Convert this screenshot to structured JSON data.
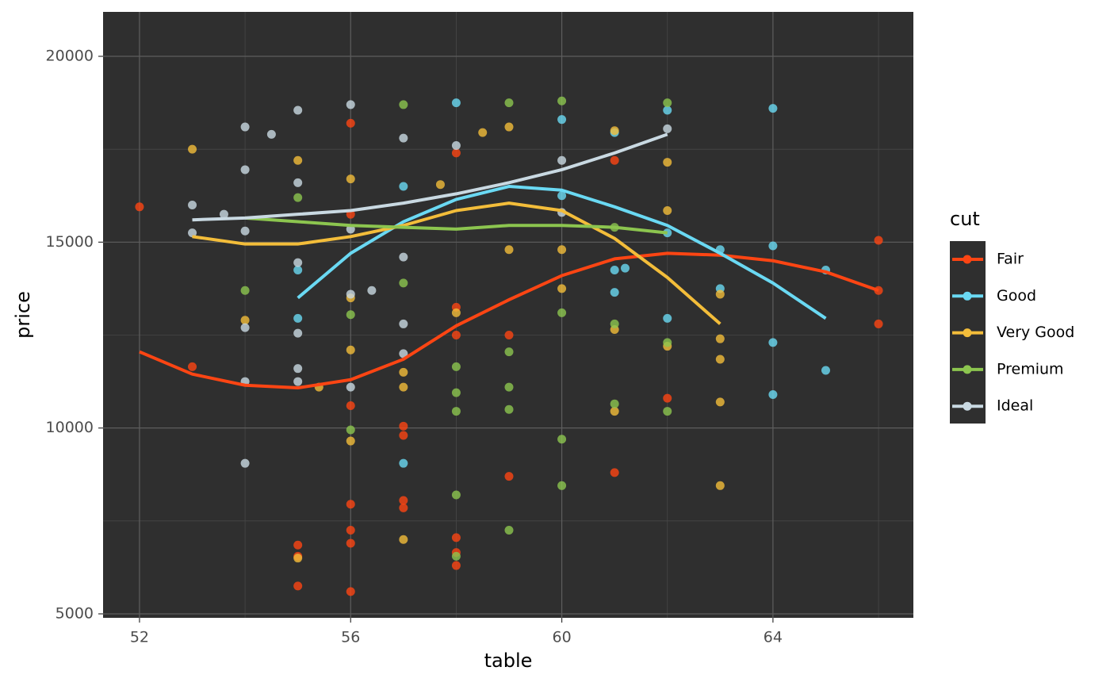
{
  "chart_data": {
    "type": "scatter",
    "x_label": "table",
    "y_label": "price",
    "legend_title": "cut",
    "xlim": [
      51.31,
      66.66
    ],
    "ylim": [
      4893,
      21195
    ],
    "xticks": [
      52,
      56,
      60,
      64
    ],
    "yticks": [
      5000,
      10000,
      15000,
      20000
    ],
    "x_minor_grid": [
      54,
      58,
      62,
      66
    ],
    "y_minor_grid": [
      7500,
      12500,
      17500
    ],
    "grid": true,
    "legend": "right",
    "series": [
      {
        "name": "Fair",
        "color": "#fc4513",
        "x": [
          52,
          53,
          55,
          55,
          55,
          56,
          56,
          56,
          56,
          56,
          56,
          56,
          57,
          57,
          57,
          57,
          58,
          58,
          58,
          58,
          58,
          58,
          59,
          59,
          61,
          61,
          62,
          66,
          66,
          66
        ],
        "values": [
          15950,
          11650,
          6850,
          6550,
          5750,
          18200,
          15750,
          10600,
          7950,
          7250,
          6900,
          5600,
          10050,
          9800,
          8050,
          7850,
          17400,
          13250,
          12500,
          7050,
          6650,
          6300,
          12500,
          8700,
          17200,
          8800,
          10800,
          15050,
          13700,
          12800
        ],
        "smooth_x": [
          52,
          53,
          54,
          55,
          56,
          57,
          58,
          59,
          60,
          61,
          62,
          63,
          64,
          65,
          66
        ],
        "smooth_values": [
          12050,
          11450,
          11150,
          11080,
          11300,
          11850,
          12750,
          13450,
          14100,
          14550,
          14700,
          14650,
          14500,
          14200,
          13700
        ]
      },
      {
        "name": "Good",
        "color": "#6ad9f3",
        "x": [
          55,
          55,
          57,
          57,
          58,
          60,
          60,
          61,
          61,
          61,
          61.2,
          62,
          62,
          62,
          63,
          63,
          64,
          64,
          64,
          64,
          65,
          65
        ],
        "values": [
          14250,
          12950,
          9050,
          16500,
          18750,
          16250,
          18300,
          17950,
          13650,
          14250,
          14300,
          18550,
          15250,
          12950,
          13750,
          14800,
          18600,
          14900,
          12300,
          10900,
          14250,
          11550
        ],
        "smooth_x": [
          55,
          56,
          57,
          58,
          59,
          60,
          61,
          62,
          63,
          64,
          65
        ],
        "smooth_values": [
          13500,
          14700,
          15550,
          16150,
          16500,
          16400,
          15950,
          15450,
          14700,
          13900,
          12950
        ]
      },
      {
        "name": "Very Good",
        "color": "#f3bd3a",
        "x": [
          53,
          54,
          55,
          55,
          55.4,
          56,
          56,
          56,
          56,
          57,
          57,
          57,
          57.7,
          58,
          58.5,
          59,
          59,
          60,
          60,
          61,
          61,
          61,
          62,
          62,
          62,
          63,
          63,
          63,
          63,
          63
        ],
        "values": [
          17500,
          12900,
          6500,
          17200,
          11100,
          16700,
          12100,
          9650,
          13500,
          11500,
          11100,
          7000,
          16550,
          13100,
          17950,
          18100,
          14800,
          14800,
          13750,
          18000,
          12650,
          10450,
          17150,
          15850,
          12200,
          13600,
          12400,
          11850,
          10700,
          8450
        ],
        "smooth_x": [
          53,
          54,
          55,
          56,
          57,
          58,
          59,
          60,
          61,
          62,
          63
        ],
        "smooth_values": [
          15150,
          14950,
          14950,
          15150,
          15450,
          15850,
          16050,
          15850,
          15100,
          14050,
          12800
        ]
      },
      {
        "name": "Premium",
        "color": "#8cc54f",
        "x": [
          54,
          55,
          56,
          56,
          57,
          57,
          58,
          58,
          58,
          58,
          58,
          59,
          59,
          59,
          59,
          59,
          60,
          60,
          60,
          60,
          61,
          61,
          61,
          62,
          62,
          62
        ],
        "values": [
          13700,
          16200,
          13050,
          9950,
          18700,
          13900,
          11650,
          10950,
          10450,
          8200,
          6550,
          18750,
          12050,
          11100,
          10500,
          7250,
          18800,
          13100,
          9700,
          8450,
          15400,
          12800,
          10650,
          18750,
          12300,
          10450
        ],
        "smooth_x": [
          54,
          55,
          56,
          57,
          58,
          59,
          60,
          61,
          62
        ],
        "smooth_values": [
          15650,
          15550,
          15450,
          15400,
          15350,
          15450,
          15450,
          15400,
          15250
        ]
      },
      {
        "name": "Ideal",
        "color": "#c9d9e2",
        "x": [
          53,
          53,
          53.6,
          54,
          54,
          54,
          54,
          54,
          54,
          54.5,
          55,
          55,
          55,
          55,
          55,
          55,
          56,
          56,
          56,
          56,
          56.4,
          57,
          57,
          57,
          57,
          58,
          60,
          60,
          62
        ],
        "values": [
          16000,
          15250,
          15750,
          18100,
          16950,
          15300,
          12700,
          11250,
          9050,
          17900,
          18550,
          16600,
          14450,
          12550,
          11600,
          11250,
          18700,
          15350,
          13600,
          11100,
          13700,
          17800,
          14600,
          12800,
          12000,
          17600,
          17200,
          15800,
          18050
        ],
        "smooth_x": [
          53,
          54,
          55,
          56,
          57,
          58,
          59,
          60,
          61,
          62
        ],
        "smooth_values": [
          15600,
          15650,
          15750,
          15850,
          16050,
          16300,
          16600,
          16950,
          17400,
          17900
        ]
      }
    ]
  }
}
